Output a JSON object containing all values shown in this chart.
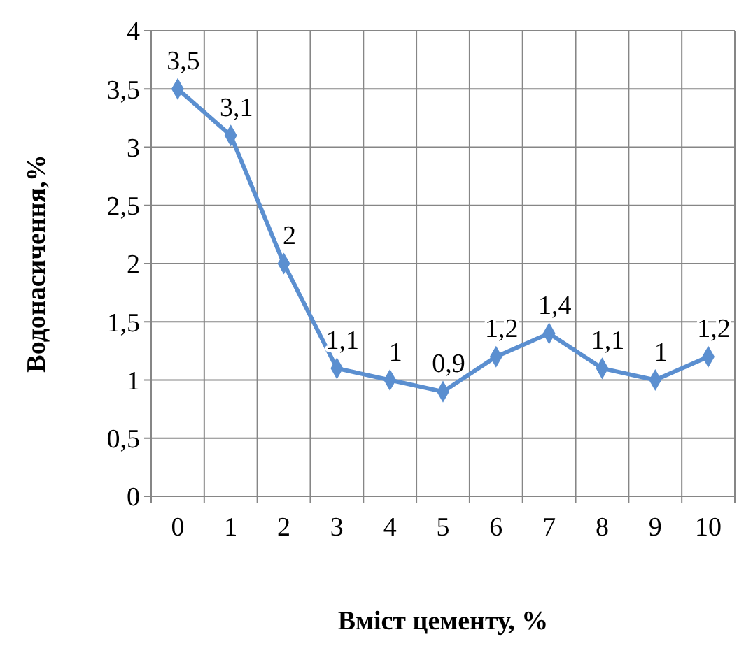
{
  "chart_data": {
    "type": "line",
    "xlabel": "Вміст цементу, %",
    "ylabel": "Водонасичення,%",
    "categories": [
      "0",
      "1",
      "2",
      "3",
      "4",
      "5",
      "6",
      "7",
      "8",
      "9",
      "10"
    ],
    "series": [
      {
        "color": "#5b8fd0",
        "values": [
          3.5,
          3.1,
          2,
          1.1,
          1,
          0.9,
          1.2,
          1.4,
          1.1,
          1,
          1.2
        ],
        "value_labels": [
          "3,5",
          "3,1",
          "2",
          "1,1",
          "1",
          "0,9",
          "1,2",
          "1,4",
          "1,1",
          "1",
          "1,2"
        ]
      }
    ],
    "ylim": [
      0,
      4
    ],
    "yticks": [
      0,
      {
        "value": 0.5,
        "label": "0,5"
      },
      1,
      {
        "value": 1.5,
        "label": "1,5"
      },
      2,
      {
        "value": 2.5,
        "label": "2,5"
      },
      3,
      {
        "value": 3.5,
        "label": "3,5"
      },
      4
    ],
    "grid": true,
    "marker": "diamond",
    "line_style": "solid"
  }
}
